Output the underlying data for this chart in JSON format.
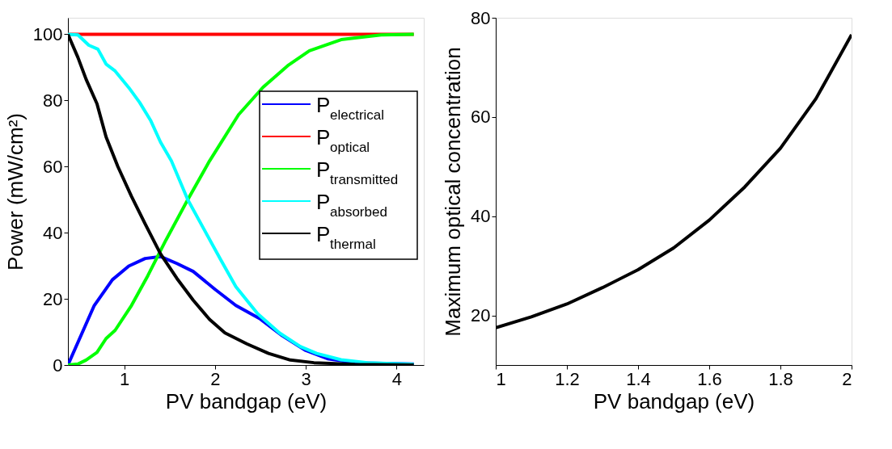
{
  "chart_data": [
    {
      "type": "line",
      "xlabel": "PV bandgap (eV)",
      "ylabel": "Power (mW/cm²)",
      "xlim": [
        0.38,
        4.3
      ],
      "ylim": [
        0,
        105
      ],
      "xticks": [
        1,
        2,
        3,
        4
      ],
      "yticks": [
        0,
        20,
        40,
        60,
        80,
        100
      ],
      "legend": "right",
      "series": [
        {
          "name": "P$_{electrical}$",
          "color": "#0000ff",
          "x": [
            0.38,
            0.67,
            0.87,
            1.05,
            1.23,
            1.4,
            1.58,
            1.76,
            2.0,
            2.23,
            2.5,
            2.74,
            3.0,
            3.24,
            3.54,
            4.19
          ],
          "values": [
            0,
            18,
            25.8,
            29.9,
            32.2,
            32.8,
            30.7,
            28.3,
            22.9,
            18,
            13.9,
            8.9,
            4.4,
            1.9,
            0.7,
            0.3
          ]
        },
        {
          "name": "P$_{optical}$",
          "color": "#ff0000",
          "x": [
            0.38,
            4.19
          ],
          "values": [
            100,
            100
          ]
        },
        {
          "name": "P$_{transmitted}$",
          "color": "#00ff00",
          "x": [
            0.38,
            0.49,
            0.58,
            0.7,
            0.8,
            0.9,
            1.08,
            1.26,
            1.46,
            1.7,
            1.94,
            2.26,
            2.53,
            2.8,
            3.04,
            3.39,
            3.83,
            4.19
          ],
          "values": [
            0,
            0.3,
            1.5,
            3.8,
            8,
            10.5,
            18,
            27,
            37.8,
            50,
            61.7,
            75.7,
            84,
            90.5,
            95,
            98.4,
            99.8,
            100
          ]
        },
        {
          "name": "P$_{absorbed}$",
          "color": "#00ffff",
          "x": [
            0.38,
            0.49,
            0.61,
            0.71,
            0.8,
            0.9,
            1.05,
            1.17,
            1.29,
            1.4,
            1.52,
            1.7,
            1.88,
            2.06,
            2.23,
            2.47,
            2.71,
            2.94,
            3.12,
            3.39,
            3.68,
            4.19
          ],
          "values": [
            100,
            99.8,
            96.7,
            95.5,
            91,
            88.9,
            83.9,
            79.4,
            74,
            67.4,
            61.7,
            50,
            41,
            32,
            23.7,
            15.5,
            9.7,
            5.6,
            3.5,
            1.6,
            0.7,
            0.2
          ]
        },
        {
          "name": "P$_{thermal}$",
          "color": "#000000",
          "x": [
            0.38,
            0.49,
            0.58,
            0.7,
            0.8,
            0.93,
            1.08,
            1.23,
            1.4,
            1.58,
            1.76,
            1.94,
            2.11,
            2.35,
            2.59,
            2.83,
            3.09,
            3.54,
            4.19
          ],
          "values": [
            100,
            93,
            86.4,
            79,
            69,
            60,
            51,
            42.7,
            33.6,
            26.2,
            19.6,
            13.8,
            9.7,
            6.4,
            3.5,
            1.5,
            0.7,
            0.2,
            0
          ]
        }
      ]
    },
    {
      "type": "line",
      "xlabel": "PV bandgap (eV)",
      "ylabel": "Maximum optical concentration",
      "xlim": [
        1,
        2
      ],
      "ylim": [
        10,
        80
      ],
      "xticks": [
        1,
        1.2,
        1.4,
        1.6,
        1.8,
        2
      ],
      "yticks": [
        20,
        40,
        60,
        80
      ],
      "series": [
        {
          "color": "#000000",
          "x": [
            1,
            1.1,
            1.2,
            1.3,
            1.4,
            1.5,
            1.6,
            1.7,
            1.8,
            1.9,
            2.0
          ],
          "values": [
            17.5,
            19.7,
            22.3,
            25.6,
            29.2,
            33.6,
            39.2,
            45.9,
            53.7,
            63.7,
            76.6
          ]
        }
      ]
    }
  ]
}
